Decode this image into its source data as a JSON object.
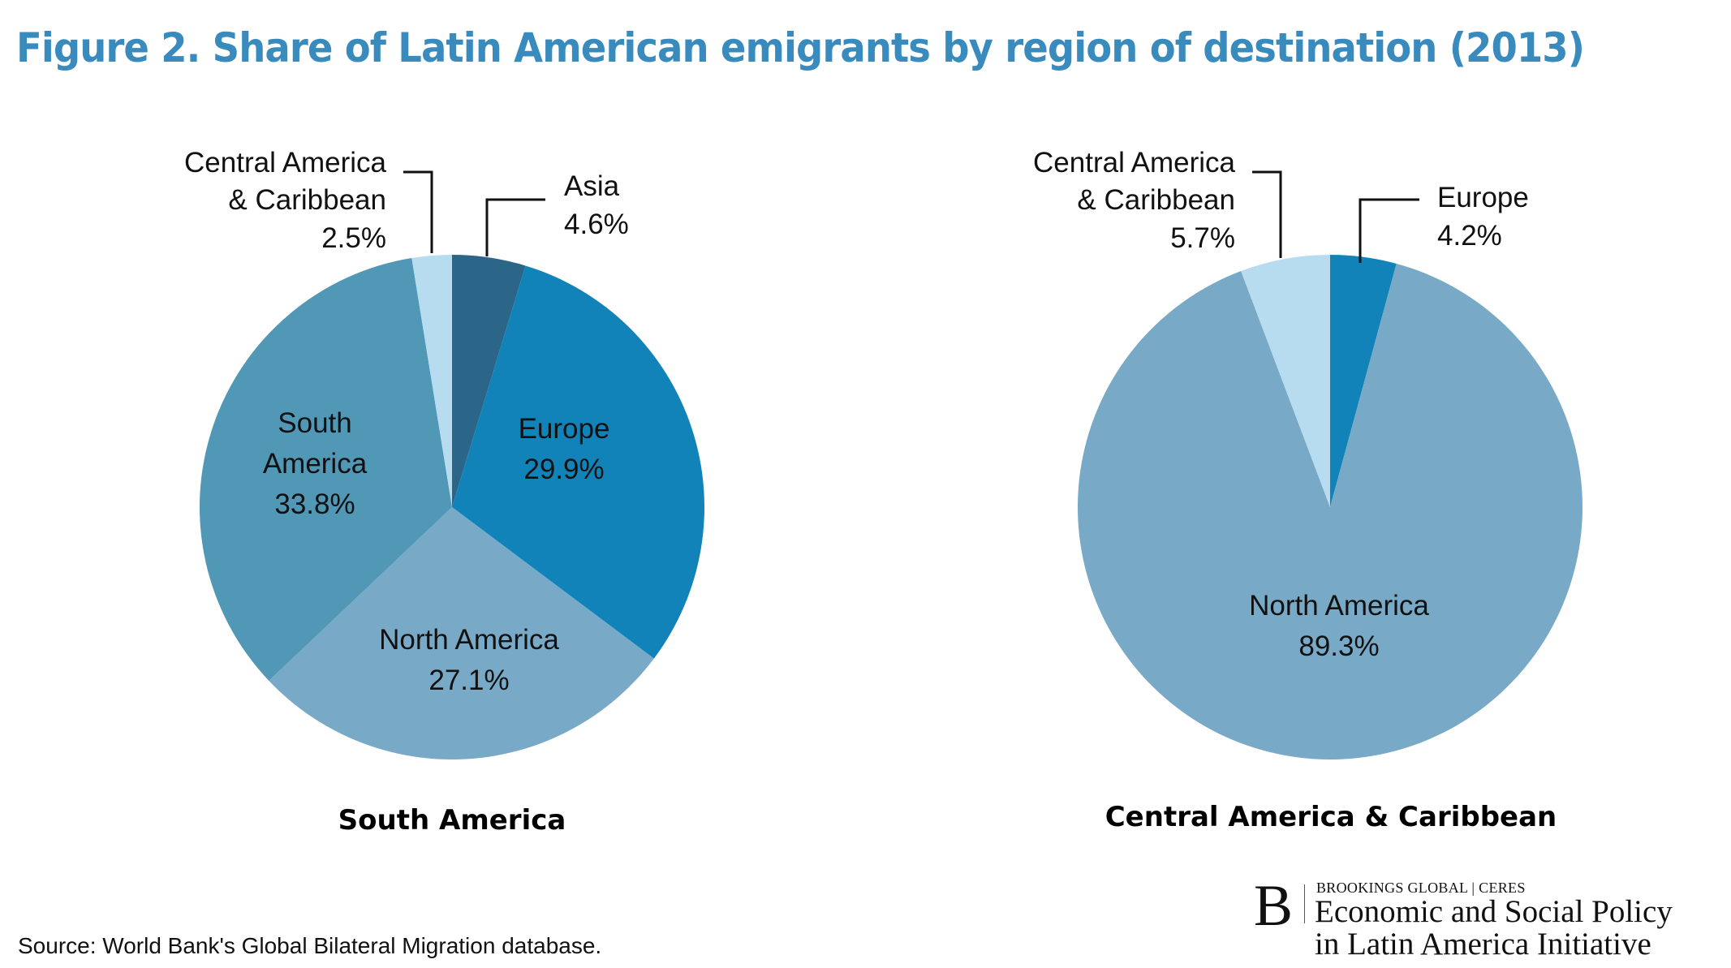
{
  "title": "Figure 2. Share of Latin American emigrants by region of destination (2013)",
  "source": "Source: World Bank's Global Bilateral Migration database.",
  "logo": {
    "mark": "B",
    "small": "BROOKINGS GLOBAL | CERES",
    "line1": "Economic and Social Policy",
    "line2": "in Latin America Initiative"
  },
  "colors": {
    "title": "#3a8bbd",
    "asia": "#2b6688",
    "europe": "#1183b8",
    "north_america": "#78a9c6",
    "south_america": "#5198b6",
    "central_america": "#b8dcef"
  },
  "chart_data": [
    {
      "type": "pie",
      "title": "South America",
      "slices": [
        {
          "label": "Asia",
          "value": 4.6,
          "display": "4.6%",
          "color": "#2b6688",
          "callout": true
        },
        {
          "label": "Europe",
          "value": 29.9,
          "display": "29.9%",
          "color": "#1183b8",
          "callout": false
        },
        {
          "label": "North America",
          "value": 27.1,
          "display": "27.1%",
          "color": "#78a9c6",
          "callout": false
        },
        {
          "label": "South America",
          "value": 33.8,
          "display": "33.8%",
          "color": "#5198b6",
          "callout": false
        },
        {
          "label": "Central America & Caribbean",
          "value": 2.5,
          "display": "2.5%",
          "color": "#b8dcef",
          "callout": true
        }
      ]
    },
    {
      "type": "pie",
      "title": "Central America & Caribbean",
      "slices": [
        {
          "label": "Europe",
          "value": 4.2,
          "display": "4.2%",
          "color": "#1183b8",
          "callout": true
        },
        {
          "label": "North America",
          "value": 89.3,
          "display": "89.3%",
          "color": "#78a9c6",
          "callout": false
        },
        {
          "label": "Central America & Caribbean",
          "value": 5.7,
          "display": "5.7%",
          "color": "#b8dcef",
          "callout": true
        }
      ]
    }
  ],
  "labels": {
    "left": {
      "asia": [
        "Asia",
        "4.6%"
      ],
      "europe": [
        "Europe",
        "29.9%"
      ],
      "north_america": [
        "North America",
        "27.1%"
      ],
      "south_america": [
        "South",
        "America",
        "33.8%"
      ],
      "central_america": [
        "Central America",
        "& Caribbean",
        "2.5%"
      ]
    },
    "right": {
      "europe": [
        "Europe",
        "4.2%"
      ],
      "north_america": [
        "North America",
        "89.3%"
      ],
      "central_america": [
        "Central America",
        "& Caribbean",
        "5.7%"
      ]
    }
  }
}
